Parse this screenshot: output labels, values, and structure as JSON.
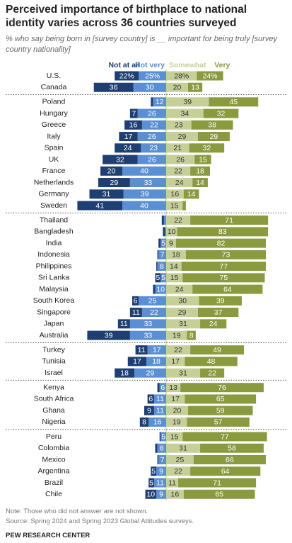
{
  "chart_data": {
    "type": "diverging_bar",
    "title": "Perceived importance of birthplace to national identity varies across 36 countries surveyed",
    "subtitle": "% who say being born in [survey country] is __ important for being truly [survey country nationality]",
    "note": "Note: Those who did not answer are not shown.",
    "source": "Source: Spring 2024 and Spring 2023 Global Attitudes surveys.",
    "credit": "PEW RESEARCH CENTER",
    "categories": [
      "U.S.",
      "Canada",
      "Poland",
      "Hungary",
      "Greece",
      "Italy",
      "Spain",
      "UK",
      "France",
      "Netherlands",
      "Germany",
      "Sweden",
      "Thailand",
      "Bangladesh",
      "India",
      "Indonesia",
      "Philippines",
      "Sri Lanka",
      "Malaysia",
      "South Korea",
      "Singapore",
      "Japan",
      "Australia",
      "Turkey",
      "Tunisia",
      "Israel",
      "Kenya",
      "South Africa",
      "Ghana",
      "Nigeria",
      "Peru",
      "Colombia",
      "Mexico",
      "Argentina",
      "Brazil",
      "Chile"
    ],
    "series": [
      {
        "name": "Not at all",
        "color": "#1f3f73",
        "values": [
          22,
          36,
          2,
          7,
          16,
          17,
          24,
          32,
          20,
          29,
          31,
          41,
          2,
          2,
          2,
          1,
          1,
          5,
          2,
          6,
          11,
          11,
          39,
          11,
          17,
          18,
          2,
          6,
          9,
          8,
          1,
          2,
          1,
          5,
          5,
          10
        ],
        "value_labels": [
          "22%",
          null,
          null,
          null,
          null,
          null,
          null,
          null,
          null,
          null,
          null,
          null,
          null,
          null,
          null,
          null,
          null,
          null,
          null,
          null,
          null,
          null,
          null,
          null,
          null,
          null,
          null,
          null,
          null,
          null,
          null,
          null,
          null,
          null,
          null,
          null
        ]
      },
      {
        "name": "Not very",
        "color": "#5b8fd3",
        "values": [
          25,
          30,
          12,
          26,
          22,
          26,
          23,
          26,
          40,
          33,
          39,
          40,
          2,
          1,
          5,
          7,
          8,
          5,
          10,
          25,
          22,
          33,
          33,
          17,
          18,
          29,
          6,
          11,
          11,
          16,
          5,
          8,
          7,
          9,
          11,
          9
        ],
        "value_labels": [
          "25%",
          null,
          null,
          null,
          null,
          null,
          null,
          null,
          null,
          null,
          null,
          null,
          null,
          null,
          null,
          null,
          null,
          null,
          null,
          null,
          null,
          null,
          null,
          null,
          null,
          null,
          null,
          null,
          null,
          null,
          null,
          null,
          null,
          null,
          null,
          null
        ]
      },
      {
        "name": "Somewhat",
        "color": "#c6cf98",
        "values": [
          28,
          20,
          39,
          34,
          23,
          29,
          21,
          26,
          22,
          24,
          16,
          15,
          22,
          10,
          9,
          18,
          14,
          15,
          24,
          30,
          29,
          31,
          19,
          22,
          17,
          31,
          13,
          17,
          20,
          19,
          15,
          31,
          25,
          22,
          11,
          16
        ],
        "value_labels": [
          "28%",
          null,
          null,
          null,
          null,
          null,
          null,
          null,
          null,
          null,
          null,
          null,
          null,
          null,
          null,
          null,
          null,
          null,
          null,
          null,
          null,
          null,
          null,
          null,
          null,
          null,
          null,
          null,
          null,
          null,
          null,
          null,
          null,
          null,
          null,
          null
        ]
      },
      {
        "name": "Very",
        "color": "#8a9a3e",
        "values": [
          24,
          13,
          45,
          32,
          38,
          29,
          32,
          15,
          18,
          14,
          14,
          3,
          71,
          83,
          82,
          73,
          77,
          75,
          64,
          39,
          37,
          24,
          8,
          49,
          48,
          22,
          76,
          65,
          59,
          57,
          77,
          58,
          66,
          64,
          71,
          65
        ],
        "value_labels": [
          "24%",
          null,
          null,
          null,
          null,
          null,
          null,
          null,
          null,
          null,
          null,
          null,
          null,
          null,
          null,
          null,
          null,
          null,
          null,
          null,
          null,
          null,
          null,
          null,
          null,
          null,
          null,
          null,
          null,
          null,
          null,
          null,
          null,
          null,
          null,
          null
        ]
      }
    ]
  }
}
